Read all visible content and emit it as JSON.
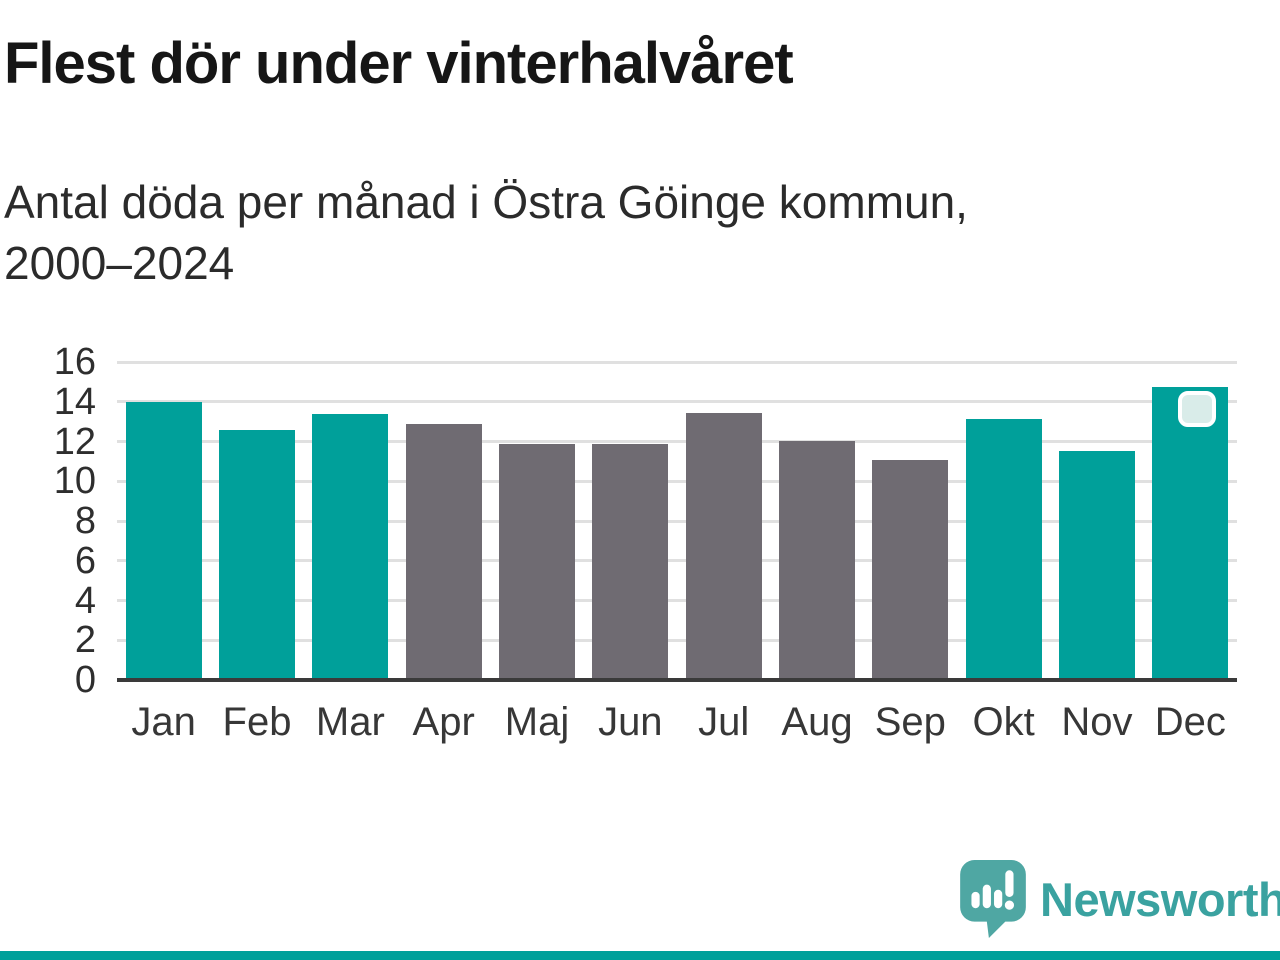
{
  "title": "Flest dör under vinterhalvåret",
  "subtitle": {
    "line1": "Antal döda per månad i Östra Göinge kommun,",
    "line2": "2000–2024"
  },
  "chart_data": {
    "type": "bar",
    "categories": [
      "Jan",
      "Feb",
      "Mar",
      "Apr",
      "Maj",
      "Jun",
      "Jul",
      "Aug",
      "Sep",
      "Okt",
      "Nov",
      "Dec"
    ],
    "values": [
      14.0,
      12.6,
      13.4,
      12.9,
      11.85,
      11.85,
      13.45,
      12.05,
      11.05,
      13.15,
      11.5,
      14.75
    ],
    "bar_palette": [
      "teal",
      "teal",
      "teal",
      "gray",
      "gray",
      "gray",
      "gray",
      "gray",
      "gray",
      "teal",
      "teal",
      "teal"
    ],
    "title": "Flest dör under vinterhalvåret",
    "xlabel": "",
    "ylabel": "",
    "ylim": [
      0,
      16
    ],
    "yticks": [
      0,
      2,
      4,
      6,
      8,
      10,
      12,
      14,
      16
    ],
    "grid": true,
    "legend": "none",
    "highlighted_category": "Dec"
  },
  "colors": {
    "bar_teal": "#00a09a",
    "bar_gray": "#6f6b72",
    "gridline": "#e0e0e0",
    "axis_line": "#3a3a3a",
    "marker_fill": "#d9ece9",
    "marker_border": "#ffffff",
    "logo_teal": "#4fa7a3",
    "wordmark_teal": "#3aa2a0",
    "footer_stripe": "#00a09a"
  },
  "branding": {
    "wordmark": "Newsworthy",
    "logo_icon": "newsworthy-speech-bubble-chart-icon"
  }
}
